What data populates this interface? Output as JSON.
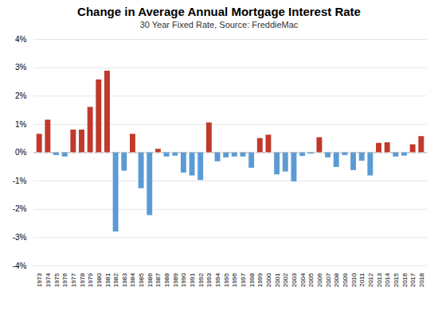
{
  "chart_data": {
    "type": "bar",
    "title": "Change in Average Annual Mortgage Interest Rate",
    "subtitle": "30 Year Fixed Rate, Source: FreddieMac",
    "categories": [
      "1973",
      "1974",
      "1975",
      "1976",
      "1977",
      "1978",
      "1979",
      "1980",
      "1981",
      "1982",
      "1983",
      "1984",
      "1985",
      "1986",
      "1987",
      "1988",
      "1989",
      "1990",
      "1991",
      "1992",
      "1993",
      "1994",
      "1995",
      "1996",
      "1997",
      "1998",
      "1999",
      "2000",
      "2001",
      "2002",
      "2003",
      "2004",
      "2005",
      "2006",
      "2007",
      "2008",
      "2009",
      "2010",
      "2011",
      "2012",
      "2013",
      "2014",
      "2015",
      "2016",
      "2017",
      "2018"
    ],
    "values": [
      0.65,
      1.15,
      -0.1,
      -0.15,
      0.8,
      0.8,
      1.6,
      2.57,
      2.88,
      -2.8,
      -0.65,
      0.65,
      -1.27,
      -2.22,
      0.12,
      -0.15,
      -0.12,
      -0.72,
      -0.82,
      -0.98,
      1.05,
      -0.32,
      -0.18,
      -0.15,
      -0.15,
      -0.55,
      0.5,
      0.62,
      -0.78,
      -0.68,
      -1.03,
      -0.13,
      -0.05,
      0.53,
      -0.18,
      -0.52,
      -0.1,
      -0.63,
      -0.3,
      -0.82,
      0.33,
      0.35,
      -0.15,
      -0.12,
      0.28,
      0.57
    ],
    "colors": [
      "#c0392b",
      "#c0392b",
      "#5b9bd5",
      "#5b9bd5",
      "#c0392b",
      "#c0392b",
      "#c0392b",
      "#c0392b",
      "#c0392b",
      "#5b9bd5",
      "#5b9bd5",
      "#c0392b",
      "#5b9bd5",
      "#5b9bd5",
      "#c0392b",
      "#5b9bd5",
      "#5b9bd5",
      "#5b9bd5",
      "#5b9bd5",
      "#5b9bd5",
      "#c0392b",
      "#5b9bd5",
      "#5b9bd5",
      "#5b9bd5",
      "#5b9bd5",
      "#5b9bd5",
      "#c0392b",
      "#c0392b",
      "#5b9bd5",
      "#5b9bd5",
      "#5b9bd5",
      "#5b9bd5",
      "#5b9bd5",
      "#c0392b",
      "#5b9bd5",
      "#5b9bd5",
      "#5b9bd5",
      "#5b9bd5",
      "#5b9bd5",
      "#5b9bd5",
      "#c0392b",
      "#c0392b",
      "#5b9bd5",
      "#5b9bd5",
      "#c0392b",
      "#c0392b"
    ],
    "ylim": [
      -4.0,
      4.0
    ],
    "yticks": [
      {
        "value": -4,
        "label": "-4%"
      },
      {
        "value": -3,
        "label": "-3%"
      },
      {
        "value": -2,
        "label": "-2%"
      },
      {
        "value": -1,
        "label": "-1%"
      },
      {
        "value": 0,
        "label": "0%"
      },
      {
        "value": 1,
        "label": "1%"
      },
      {
        "value": 2,
        "label": "2%"
      },
      {
        "value": 3,
        "label": "3%"
      },
      {
        "value": 4,
        "label": "4%"
      }
    ],
    "grid": true
  }
}
